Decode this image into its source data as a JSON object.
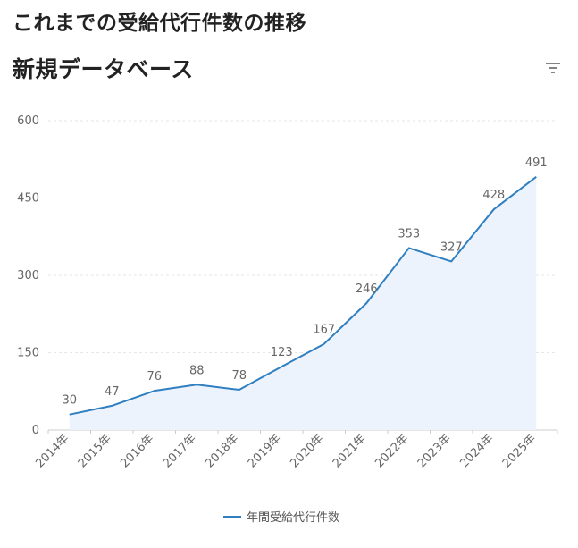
{
  "header": {
    "title": "これまでの受給代行件数の推移",
    "subtitle": "新規データベース"
  },
  "filter_icon": "filter-icon",
  "colors": {
    "line": "#2f7fc1",
    "area": "#ecf3fc",
    "grid": "#e6e6e6",
    "axis": "#cccccc"
  },
  "chart_data": {
    "type": "area",
    "categories": [
      "2014年",
      "2015年",
      "2016年",
      "2017年",
      "2018年",
      "2019年",
      "2020年",
      "2021年",
      "2022年",
      "2023年",
      "2024年",
      "2025年"
    ],
    "series": [
      {
        "name": "年間受給代行件数",
        "values": [
          30,
          47,
          76,
          88,
          78,
          123,
          167,
          246,
          353,
          327,
          428,
          491
        ]
      }
    ],
    "ylim": [
      0,
      600
    ],
    "yticks": [
      0,
      150,
      300,
      450,
      600
    ],
    "grid": true,
    "data_labels": true,
    "legend": "bottom-center"
  }
}
